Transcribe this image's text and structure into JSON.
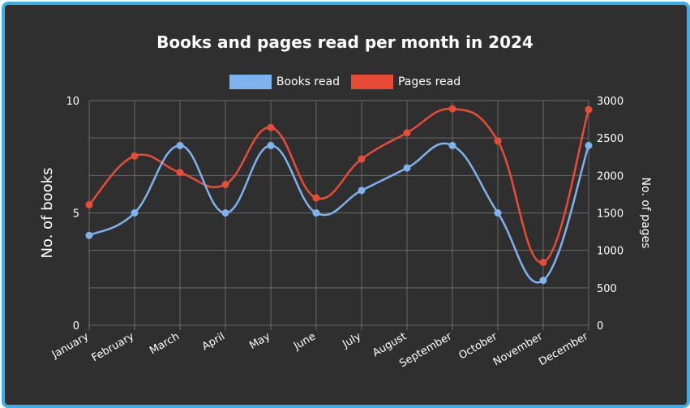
{
  "chart_data": {
    "type": "line",
    "title": "Books and pages read per month in 2024",
    "categories": [
      "January",
      "February",
      "March",
      "April",
      "May",
      "June",
      "July",
      "August",
      "September",
      "October",
      "November",
      "December"
    ],
    "series": [
      {
        "name": "Books read",
        "axis": "left",
        "color": "#7eb3ef",
        "values": [
          4,
          5,
          8,
          5,
          8,
          5,
          6,
          7,
          8,
          5,
          2,
          8
        ]
      },
      {
        "name": "Pages read",
        "axis": "right",
        "color": "#e84c36",
        "values": [
          1610,
          2260,
          2040,
          1880,
          2640,
          1700,
          2220,
          2570,
          2890,
          2460,
          840,
          2880
        ]
      }
    ],
    "ylabel": "No. of books",
    "ylabel_right": "No. of pages",
    "ylim": [
      0,
      10
    ],
    "ylim_right": [
      0,
      3000
    ],
    "yticks": [
      "0",
      "5",
      "10"
    ],
    "yticks_right": [
      "0",
      "500",
      "1000",
      "1500",
      "2000",
      "2500",
      "3000"
    ],
    "grid": true,
    "legend_position": "top",
    "smooth": true
  },
  "theme": {
    "background": "#2f2f2f",
    "frame_border": "#3aaee8",
    "grid_color": "#6a6a6a",
    "text_color": "#ffffff"
  }
}
